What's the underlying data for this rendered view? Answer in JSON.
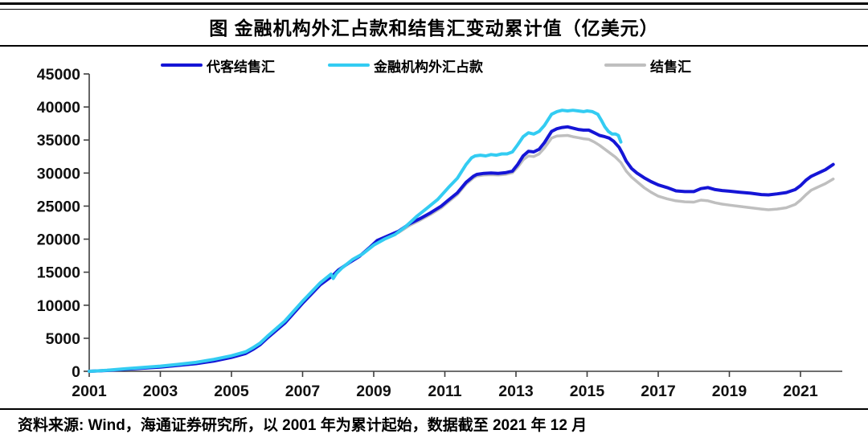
{
  "title": "图  金融机构外汇占款和结售汇变动累计值（亿美元）",
  "footer": {
    "source": "资料来源: Wind，海通证券研究所，以 2001 年为累计起始，数据截至 2021 年 12 月"
  },
  "colors": {
    "series_blue": "#1515d6",
    "series_cyan": "#33ccf2",
    "series_gray": "#bfbfbf",
    "axis": "#3f3f3f",
    "tick_text": "#111111"
  },
  "chart_data": {
    "type": "line",
    "title": "图 金融机构外汇占款和结售汇变动累计值（亿美元）",
    "xlabel": "",
    "ylabel": "",
    "ylim": [
      0,
      45000
    ],
    "xlim": [
      2001,
      2022.1
    ],
    "yticks": [
      0,
      5000,
      10000,
      15000,
      20000,
      25000,
      30000,
      35000,
      40000,
      45000
    ],
    "xticks": [
      2001,
      2003,
      2005,
      2007,
      2009,
      2011,
      2013,
      2015,
      2017,
      2019,
      2021
    ],
    "grid": false,
    "legend_position": "top",
    "series": [
      {
        "name": "结售汇",
        "color": "#bfbfbf",
        "stroke_width": 3.5,
        "points": [
          [
            2001.0,
            0
          ],
          [
            2001.5,
            120
          ],
          [
            2002.0,
            300
          ],
          [
            2002.5,
            480
          ],
          [
            2003.0,
            650
          ],
          [
            2003.5,
            900
          ],
          [
            2004.0,
            1150
          ],
          [
            2004.5,
            1550
          ],
          [
            2005.0,
            2100
          ],
          [
            2005.4,
            2700
          ],
          [
            2005.6,
            3300
          ],
          [
            2005.8,
            4000
          ],
          [
            2006.0,
            5000
          ],
          [
            2006.5,
            7300
          ],
          [
            2007.0,
            10300
          ],
          [
            2007.5,
            13100
          ],
          [
            2007.85,
            14500
          ],
          [
            2008.0,
            15300
          ],
          [
            2008.3,
            16400
          ],
          [
            2008.6,
            17400
          ],
          [
            2008.9,
            18800
          ],
          [
            2009.1,
            19800
          ],
          [
            2009.4,
            20400
          ],
          [
            2009.7,
            21000
          ],
          [
            2010.0,
            22050
          ],
          [
            2010.3,
            22850
          ],
          [
            2010.6,
            23750
          ],
          [
            2010.9,
            24750
          ],
          [
            2011.1,
            25650
          ],
          [
            2011.35,
            26750
          ],
          [
            2011.6,
            28350
          ],
          [
            2011.8,
            29250
          ],
          [
            2011.9,
            29550
          ],
          [
            2012.1,
            29700
          ],
          [
            2012.3,
            29750
          ],
          [
            2012.5,
            29700
          ],
          [
            2012.7,
            29800
          ],
          [
            2012.9,
            30050
          ],
          [
            2013.05,
            30900
          ],
          [
            2013.2,
            32000
          ],
          [
            2013.35,
            32600
          ],
          [
            2013.5,
            32500
          ],
          [
            2013.65,
            32900
          ],
          [
            2013.8,
            33800
          ],
          [
            2014.0,
            35300
          ],
          [
            2014.15,
            35600
          ],
          [
            2014.3,
            35650
          ],
          [
            2014.45,
            35700
          ],
          [
            2014.6,
            35500
          ],
          [
            2014.75,
            35350
          ],
          [
            2014.9,
            35200
          ],
          [
            2015.05,
            35100
          ],
          [
            2015.2,
            34700
          ],
          [
            2015.35,
            34200
          ],
          [
            2015.5,
            33600
          ],
          [
            2015.65,
            33000
          ],
          [
            2015.8,
            32400
          ],
          [
            2015.95,
            31600
          ],
          [
            2016.1,
            30300
          ],
          [
            2016.25,
            29400
          ],
          [
            2016.4,
            28700
          ],
          [
            2016.6,
            27800
          ],
          [
            2016.8,
            27100
          ],
          [
            2017.0,
            26500
          ],
          [
            2017.25,
            26100
          ],
          [
            2017.5,
            25800
          ],
          [
            2017.75,
            25650
          ],
          [
            2018.0,
            25600
          ],
          [
            2018.2,
            25900
          ],
          [
            2018.4,
            25800
          ],
          [
            2018.6,
            25500
          ],
          [
            2018.8,
            25300
          ],
          [
            2019.0,
            25150
          ],
          [
            2019.3,
            24950
          ],
          [
            2019.6,
            24750
          ],
          [
            2019.9,
            24550
          ],
          [
            2020.1,
            24450
          ],
          [
            2020.35,
            24550
          ],
          [
            2020.6,
            24750
          ],
          [
            2020.85,
            25250
          ],
          [
            2021.0,
            25900
          ],
          [
            2021.15,
            26700
          ],
          [
            2021.3,
            27400
          ],
          [
            2021.5,
            27900
          ],
          [
            2021.7,
            28400
          ],
          [
            2021.92,
            29100
          ]
        ]
      },
      {
        "name": "代客结售汇",
        "color": "#1515d6",
        "stroke_width": 4,
        "points": [
          [
            2001.0,
            0
          ],
          [
            2001.5,
            120
          ],
          [
            2002.0,
            300
          ],
          [
            2002.5,
            480
          ],
          [
            2003.0,
            650
          ],
          [
            2003.5,
            900
          ],
          [
            2004.0,
            1150
          ],
          [
            2004.5,
            1550
          ],
          [
            2005.0,
            2100
          ],
          [
            2005.4,
            2700
          ],
          [
            2005.6,
            3300
          ],
          [
            2005.8,
            4000
          ],
          [
            2006.0,
            5000
          ],
          [
            2006.5,
            7300
          ],
          [
            2007.0,
            10300
          ],
          [
            2007.5,
            13100
          ],
          [
            2007.85,
            14500
          ],
          [
            2008.0,
            15300
          ],
          [
            2008.3,
            16400
          ],
          [
            2008.6,
            17400
          ],
          [
            2008.9,
            18800
          ],
          [
            2009.1,
            19800
          ],
          [
            2009.4,
            20500
          ],
          [
            2009.7,
            21200
          ],
          [
            2010.0,
            22300
          ],
          [
            2010.3,
            23100
          ],
          [
            2010.6,
            24000
          ],
          [
            2010.9,
            25000
          ],
          [
            2011.1,
            25900
          ],
          [
            2011.35,
            27000
          ],
          [
            2011.6,
            28600
          ],
          [
            2011.8,
            29500
          ],
          [
            2011.9,
            29800
          ],
          [
            2012.1,
            29950
          ],
          [
            2012.3,
            30000
          ],
          [
            2012.5,
            29950
          ],
          [
            2012.7,
            30050
          ],
          [
            2012.9,
            30300
          ],
          [
            2013.05,
            31300
          ],
          [
            2013.2,
            32600
          ],
          [
            2013.35,
            33300
          ],
          [
            2013.5,
            33200
          ],
          [
            2013.65,
            33600
          ],
          [
            2013.8,
            34600
          ],
          [
            2014.0,
            36300
          ],
          [
            2014.15,
            36700
          ],
          [
            2014.3,
            36900
          ],
          [
            2014.45,
            37000
          ],
          [
            2014.6,
            36800
          ],
          [
            2014.75,
            36600
          ],
          [
            2014.9,
            36500
          ],
          [
            2015.05,
            36500
          ],
          [
            2015.2,
            36100
          ],
          [
            2015.35,
            35700
          ],
          [
            2015.5,
            35500
          ],
          [
            2015.62,
            35300
          ],
          [
            2015.75,
            34800
          ],
          [
            2015.9,
            33900
          ],
          [
            2016.0,
            32900
          ],
          [
            2016.1,
            31800
          ],
          [
            2016.25,
            30700
          ],
          [
            2016.4,
            30000
          ],
          [
            2016.6,
            29300
          ],
          [
            2016.8,
            28700
          ],
          [
            2017.0,
            28200
          ],
          [
            2017.25,
            27800
          ],
          [
            2017.5,
            27300
          ],
          [
            2017.75,
            27200
          ],
          [
            2018.0,
            27200
          ],
          [
            2018.2,
            27650
          ],
          [
            2018.4,
            27800
          ],
          [
            2018.6,
            27500
          ],
          [
            2018.8,
            27350
          ],
          [
            2019.0,
            27250
          ],
          [
            2019.3,
            27100
          ],
          [
            2019.6,
            26950
          ],
          [
            2019.9,
            26750
          ],
          [
            2020.1,
            26700
          ],
          [
            2020.35,
            26850
          ],
          [
            2020.6,
            27050
          ],
          [
            2020.85,
            27500
          ],
          [
            2021.0,
            28100
          ],
          [
            2021.15,
            28900
          ],
          [
            2021.3,
            29500
          ],
          [
            2021.5,
            30000
          ],
          [
            2021.7,
            30500
          ],
          [
            2021.92,
            31300
          ]
        ]
      },
      {
        "name": "金融机构外汇占款",
        "color": "#33ccf2",
        "stroke_width": 4,
        "points": [
          [
            2001.0,
            0
          ],
          [
            2001.5,
            150
          ],
          [
            2002.0,
            380
          ],
          [
            2002.5,
            570
          ],
          [
            2003.0,
            780
          ],
          [
            2003.5,
            1050
          ],
          [
            2004.0,
            1350
          ],
          [
            2004.5,
            1800
          ],
          [
            2005.0,
            2350
          ],
          [
            2005.4,
            2950
          ],
          [
            2005.6,
            3550
          ],
          [
            2005.8,
            4250
          ],
          [
            2006.0,
            5250
          ],
          [
            2006.5,
            7600
          ],
          [
            2007.0,
            10600
          ],
          [
            2007.5,
            13400
          ],
          [
            2007.8,
            14700
          ],
          [
            2007.86,
            14050
          ],
          [
            2007.95,
            14800
          ],
          [
            2008.1,
            15600
          ],
          [
            2008.4,
            16900
          ],
          [
            2008.7,
            17800
          ],
          [
            2009.0,
            19100
          ],
          [
            2009.3,
            20000
          ],
          [
            2009.6,
            20700
          ],
          [
            2009.9,
            21900
          ],
          [
            2010.2,
            23400
          ],
          [
            2010.5,
            24700
          ],
          [
            2010.8,
            26000
          ],
          [
            2011.1,
            27800
          ],
          [
            2011.35,
            29200
          ],
          [
            2011.6,
            31300
          ],
          [
            2011.75,
            32300
          ],
          [
            2011.85,
            32600
          ],
          [
            2012.0,
            32700
          ],
          [
            2012.15,
            32600
          ],
          [
            2012.3,
            32800
          ],
          [
            2012.45,
            32700
          ],
          [
            2012.6,
            32900
          ],
          [
            2012.75,
            32900
          ],
          [
            2012.9,
            33200
          ],
          [
            2013.05,
            34300
          ],
          [
            2013.2,
            35500
          ],
          [
            2013.35,
            36100
          ],
          [
            2013.5,
            35900
          ],
          [
            2013.65,
            36300
          ],
          [
            2013.8,
            37200
          ],
          [
            2014.0,
            38900
          ],
          [
            2014.15,
            39300
          ],
          [
            2014.3,
            39500
          ],
          [
            2014.45,
            39400
          ],
          [
            2014.6,
            39500
          ],
          [
            2014.75,
            39400
          ],
          [
            2014.9,
            39300
          ],
          [
            2015.0,
            39400
          ],
          [
            2015.15,
            39300
          ],
          [
            2015.3,
            38900
          ],
          [
            2015.4,
            38000
          ],
          [
            2015.5,
            37000
          ],
          [
            2015.6,
            36300
          ],
          [
            2015.7,
            35900
          ],
          [
            2015.8,
            35900
          ],
          [
            2015.88,
            35700
          ],
          [
            2015.95,
            34700
          ]
        ]
      }
    ],
    "legend_order": [
      "代客结售汇",
      "金融机构外汇占款",
      "结售汇"
    ]
  }
}
